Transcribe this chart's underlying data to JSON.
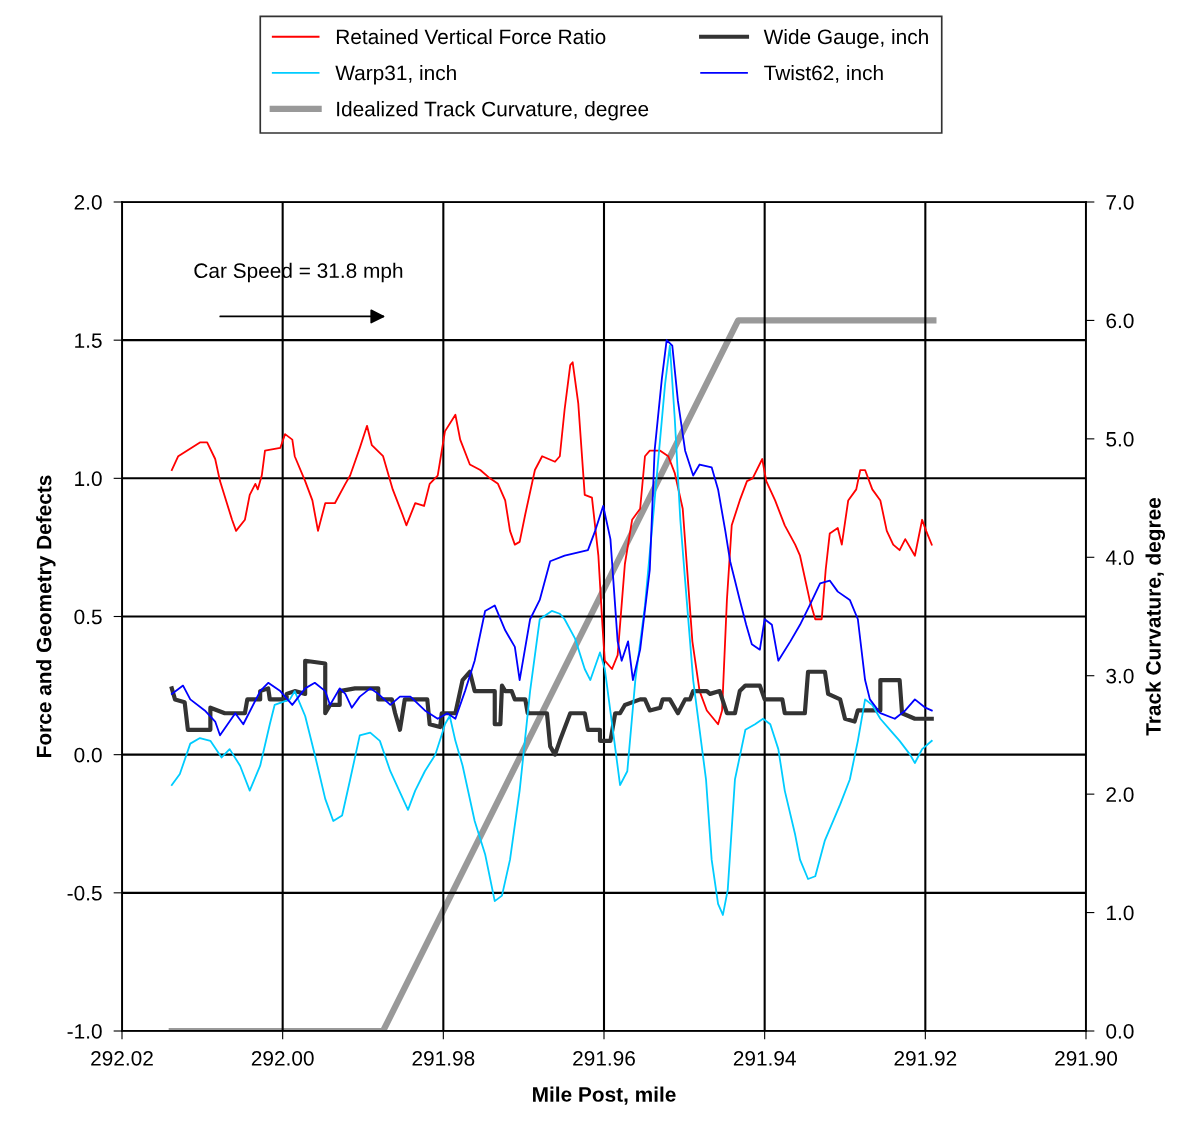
{
  "chart_data": {
    "type": "line",
    "xlabel": "Mile Post, mile",
    "ylabel": "Force and Geometry Defects",
    "y2label": "Track Curvature, degree",
    "xlim": [
      292.02,
      291.9
    ],
    "xticks": [
      {
        "value": 292.02,
        "label": "292.02"
      },
      {
        "value": 292.0,
        "label": "292.00"
      },
      {
        "value": 291.98,
        "label": "291.98"
      },
      {
        "value": 291.96,
        "label": "291.96"
      },
      {
        "value": 291.94,
        "label": "291.94"
      },
      {
        "value": 291.92,
        "label": "291.92"
      },
      {
        "value": 291.9,
        "label": "291.90"
      }
    ],
    "ylim": [
      -1.0,
      2.0
    ],
    "yticks": [
      {
        "value": -1.0,
        "label": "-1.0"
      },
      {
        "value": -0.5,
        "label": "-0.5"
      },
      {
        "value": 0.0,
        "label": "0.0"
      },
      {
        "value": 0.5,
        "label": "0.5"
      },
      {
        "value": 1.0,
        "label": "1.0"
      },
      {
        "value": 1.5,
        "label": "1.5"
      },
      {
        "value": 2.0,
        "label": "2.0"
      }
    ],
    "y2lim": [
      0.0,
      7.0
    ],
    "y2ticks": [
      {
        "value": 0.0,
        "label": "0.0"
      },
      {
        "value": 1.0,
        "label": "1.0"
      },
      {
        "value": 2.0,
        "label": "2.0"
      },
      {
        "value": 3.0,
        "label": "3.0"
      },
      {
        "value": 4.0,
        "label": "4.0"
      },
      {
        "value": 5.0,
        "label": "5.0"
      },
      {
        "value": 6.0,
        "label": "6.0"
      },
      {
        "value": 7.0,
        "label": "7.0"
      }
    ],
    "grid": true,
    "legend": "top",
    "marker": "none",
    "line_style": "solid",
    "annotations": [
      "Car Speed = 31.8 mph"
    ],
    "series": [
      {
        "name": "Retained Vertical Force Ratio",
        "color": "#ff0000",
        "x": [
          292.0138,
          292.013,
          292.0103,
          292.0094,
          292.0084,
          292.0078,
          292.0063,
          292.0058,
          292.0047,
          292.0041,
          292.0034,
          292.0031,
          292.0026,
          292.0022,
          292.0003,
          291.9997,
          291.9988,
          291.9985,
          291.9972,
          291.9963,
          291.9956,
          291.9947,
          291.9935,
          291.9922,
          291.9916,
          291.9904,
          291.9895,
          291.9889,
          291.9875,
          291.9863,
          291.9851,
          291.9846,
          291.9835,
          291.9824,
          291.9817,
          291.9807,
          291.9798,
          291.9785,
          291.9779,
          291.9767,
          291.9754,
          291.9742,
          291.9732,
          291.9723,
          291.9717,
          291.9711,
          291.9705,
          291.9698,
          291.9686,
          291.9677,
          291.9661,
          291.9655,
          291.9649,
          291.9642,
          291.9639,
          291.9632,
          291.9624,
          291.9615,
          291.9607,
          291.9602,
          291.9599,
          291.959,
          291.9583,
          291.9574,
          291.9565,
          291.9555,
          291.9549,
          291.9543,
          291.953,
          291.952,
          291.9512,
          291.9502,
          291.949,
          291.9481,
          291.9472,
          291.9458,
          291.9453,
          291.9447,
          291.9441,
          291.9431,
          291.9422,
          291.9415,
          291.9403,
          291.9398,
          291.9387,
          291.9375,
          291.9362,
          291.9356,
          291.9344,
          291.9337,
          291.9329,
          291.9324,
          291.9319,
          291.9309,
          291.9304,
          291.9296,
          291.9286,
          291.9281,
          291.9275,
          291.9266,
          291.9256,
          291.9248,
          291.924,
          291.9232,
          291.9225,
          291.9213,
          291.9204,
          291.9199,
          291.9192
        ],
        "values": [
          1.03,
          1.08,
          1.13,
          1.13,
          1.07,
          0.99,
          0.85,
          0.81,
          0.85,
          0.94,
          0.98,
          0.96,
          1.01,
          1.1,
          1.11,
          1.16,
          1.14,
          1.08,
          0.99,
          0.92,
          0.81,
          0.91,
          0.91,
          0.98,
          1.01,
          1.11,
          1.19,
          1.12,
          1.08,
          0.96,
          0.87,
          0.83,
          0.91,
          0.9,
          0.98,
          1.01,
          1.17,
          1.23,
          1.14,
          1.05,
          1.03,
          1.0,
          0.98,
          0.92,
          0.81,
          0.76,
          0.77,
          0.87,
          1.03,
          1.08,
          1.06,
          1.08,
          1.25,
          1.41,
          1.42,
          1.27,
          0.94,
          0.93,
          0.72,
          0.47,
          0.34,
          0.31,
          0.36,
          0.69,
          0.85,
          0.89,
          1.08,
          1.1,
          1.1,
          1.08,
          1.02,
          0.89,
          0.41,
          0.23,
          0.16,
          0.11,
          0.16,
          0.56,
          0.83,
          0.92,
          0.99,
          1.0,
          1.07,
          0.99,
          0.92,
          0.83,
          0.76,
          0.72,
          0.56,
          0.49,
          0.49,
          0.67,
          0.8,
          0.82,
          0.76,
          0.92,
          0.96,
          1.03,
          1.03,
          0.96,
          0.92,
          0.81,
          0.76,
          0.74,
          0.78,
          0.72,
          0.85,
          0.81,
          0.76
        ]
      },
      {
        "name": "Wide Gauge, inch",
        "color": "#333333",
        "x": [
          292.0138,
          292.0134,
          292.0122,
          292.0118,
          292.009,
          292.009,
          292.0072,
          292.0047,
          292.0044,
          292.0028,
          292.0028,
          292.0018,
          292.0016,
          291.9995,
          291.9995,
          291.9985,
          291.9972,
          291.9972,
          291.9947,
          291.9947,
          291.9941,
          291.9929,
          291.9929,
          291.991,
          291.9881,
          291.9881,
          291.9864,
          291.986,
          291.9854,
          291.9848,
          291.982,
          291.9817,
          291.9804,
          291.9802,
          291.9785,
          291.9776,
          291.9767,
          291.9761,
          291.9736,
          291.9736,
          291.9729,
          291.9727,
          291.9723,
          291.9715,
          291.9711,
          291.9698,
          291.9695,
          291.9671,
          291.9667,
          291.9661,
          291.9655,
          291.9642,
          291.9624,
          291.962,
          291.9605,
          291.9605,
          291.9592,
          291.9586,
          291.958,
          291.9574,
          291.9555,
          291.9549,
          291.9543,
          291.953,
          291.9527,
          291.9518,
          291.9508,
          291.9499,
          291.9493,
          291.9489,
          291.9481,
          291.9472,
          291.9468,
          291.9456,
          291.9447,
          291.9437,
          291.9431,
          291.9424,
          291.9406,
          291.94,
          291.9378,
          291.9375,
          291.935,
          291.9346,
          291.9325,
          291.9321,
          291.9306,
          291.93,
          291.9288,
          291.9284,
          291.9256,
          291.9256,
          291.9232,
          291.9229,
          291.9213,
          291.9192
        ],
        "values": [
          0.24,
          0.2,
          0.19,
          0.09,
          0.09,
          0.17,
          0.15,
          0.15,
          0.2,
          0.2,
          0.23,
          0.24,
          0.2,
          0.2,
          0.22,
          0.23,
          0.22,
          0.34,
          0.33,
          0.15,
          0.18,
          0.18,
          0.23,
          0.24,
          0.24,
          0.2,
          0.2,
          0.15,
          0.09,
          0.2,
          0.2,
          0.11,
          0.1,
          0.15,
          0.15,
          0.27,
          0.3,
          0.23,
          0.23,
          0.11,
          0.11,
          0.25,
          0.23,
          0.23,
          0.2,
          0.2,
          0.15,
          0.15,
          0.03,
          0.0,
          0.05,
          0.15,
          0.15,
          0.09,
          0.09,
          0.05,
          0.05,
          0.15,
          0.15,
          0.18,
          0.2,
          0.2,
          0.16,
          0.17,
          0.2,
          0.2,
          0.15,
          0.2,
          0.2,
          0.23,
          0.23,
          0.23,
          0.22,
          0.23,
          0.15,
          0.15,
          0.23,
          0.25,
          0.25,
          0.2,
          0.2,
          0.15,
          0.15,
          0.3,
          0.3,
          0.22,
          0.2,
          0.13,
          0.12,
          0.16,
          0.16,
          0.27,
          0.27,
          0.15,
          0.13,
          0.13
        ]
      },
      {
        "name": "Warp31, inch",
        "color": "#00ccff",
        "x": [
          292.0138,
          292.0128,
          292.0115,
          292.0103,
          292.009,
          292.0076,
          292.0066,
          292.0053,
          292.0041,
          292.0028,
          292.0016,
          292.001,
          291.9991,
          291.9985,
          291.9972,
          291.996,
          291.9947,
          291.9937,
          291.9926,
          291.9916,
          291.9904,
          291.9891,
          291.9879,
          291.9866,
          291.9844,
          291.9835,
          291.9823,
          291.981,
          291.98,
          291.9798,
          291.9792,
          291.9785,
          291.9776,
          291.9761,
          291.9748,
          291.9736,
          291.9727,
          291.9717,
          291.9705,
          291.9692,
          291.968,
          291.9665,
          291.9655,
          291.9649,
          291.9636,
          291.9624,
          291.9617,
          291.9605,
          291.9599,
          291.9589,
          291.958,
          291.9571,
          291.9561,
          291.9549,
          291.9537,
          291.9524,
          291.9518,
          291.9512,
          291.9505,
          291.9499,
          291.9489,
          291.9481,
          291.9473,
          291.9466,
          291.9458,
          291.9452,
          291.9446,
          291.9437,
          291.9424,
          291.9412,
          291.9402,
          291.9393,
          291.9383,
          291.9375,
          291.9362,
          291.9356,
          291.9346,
          291.9337,
          291.9325,
          291.9306,
          291.9294,
          291.9284,
          291.9275,
          291.9266,
          291.9256,
          291.9244,
          291.9232,
          291.9219,
          291.9213,
          291.9204,
          291.9192
        ],
        "values": [
          -0.11,
          -0.07,
          0.04,
          0.06,
          0.05,
          -0.01,
          0.02,
          -0.04,
          -0.13,
          -0.04,
          0.11,
          0.18,
          0.2,
          0.23,
          0.14,
          0.0,
          -0.16,
          -0.24,
          -0.22,
          -0.09,
          0.07,
          0.08,
          0.05,
          -0.06,
          -0.2,
          -0.13,
          -0.06,
          0.0,
          0.09,
          0.11,
          0.14,
          0.05,
          -0.04,
          -0.24,
          -0.36,
          -0.53,
          -0.51,
          -0.38,
          -0.13,
          0.23,
          0.49,
          0.52,
          0.51,
          0.49,
          0.42,
          0.31,
          0.27,
          0.37,
          0.31,
          0.09,
          -0.11,
          -0.06,
          0.27,
          0.54,
          0.92,
          1.34,
          1.48,
          1.22,
          0.85,
          0.63,
          0.27,
          0.09,
          -0.09,
          -0.38,
          -0.54,
          -0.58,
          -0.49,
          -0.09,
          0.09,
          0.11,
          0.13,
          0.11,
          0.02,
          -0.13,
          -0.29,
          -0.38,
          -0.45,
          -0.44,
          -0.31,
          -0.18,
          -0.09,
          0.05,
          0.2,
          0.18,
          0.13,
          0.09,
          0.05,
          0.0,
          -0.03,
          0.02,
          0.05
        ]
      },
      {
        "name": "Twist62, inch",
        "color": "#0000ff",
        "x": [
          292.0138,
          292.0124,
          292.0115,
          292.0097,
          292.0084,
          292.0078,
          292.0059,
          292.0049,
          292.0028,
          292.0018,
          292.0003,
          291.9988,
          291.9972,
          291.996,
          291.9947,
          291.9941,
          291.9929,
          291.9922,
          291.9914,
          291.9904,
          291.9891,
          291.9881,
          291.9866,
          291.9854,
          291.9841,
          291.9823,
          291.9807,
          291.9795,
          291.9785,
          291.9773,
          291.9761,
          291.9748,
          291.9736,
          291.9723,
          291.9711,
          291.9705,
          291.9692,
          291.968,
          291.9667,
          291.9649,
          291.962,
          291.9611,
          291.9601,
          291.9592,
          291.9583,
          291.9578,
          291.957,
          291.9564,
          291.9555,
          291.9543,
          291.9537,
          291.9528,
          291.9522,
          291.9515,
          291.9508,
          291.9499,
          291.9489,
          291.9481,
          291.9466,
          291.9458,
          291.9449,
          291.9443,
          291.9437,
          291.9431,
          291.9423,
          291.9416,
          291.9406,
          291.94,
          291.9391,
          291.9383,
          291.9368,
          291.9356,
          291.9344,
          291.9331,
          291.9319,
          291.9309,
          291.9294,
          291.9284,
          291.9275,
          291.9269,
          291.9256,
          291.9238,
          291.9225,
          291.9213,
          291.92,
          291.9192
        ],
        "values": [
          0.22,
          0.25,
          0.2,
          0.16,
          0.12,
          0.07,
          0.15,
          0.11,
          0.23,
          0.26,
          0.23,
          0.18,
          0.24,
          0.26,
          0.23,
          0.18,
          0.24,
          0.22,
          0.17,
          0.21,
          0.24,
          0.22,
          0.18,
          0.21,
          0.21,
          0.16,
          0.13,
          0.15,
          0.13,
          0.23,
          0.34,
          0.52,
          0.54,
          0.45,
          0.39,
          0.27,
          0.49,
          0.56,
          0.7,
          0.72,
          0.74,
          0.81,
          0.9,
          0.78,
          0.41,
          0.34,
          0.41,
          0.27,
          0.38,
          0.67,
          1.1,
          1.36,
          1.5,
          1.48,
          1.28,
          1.1,
          1.01,
          1.05,
          1.04,
          0.96,
          0.81,
          0.7,
          0.63,
          0.56,
          0.47,
          0.4,
          0.38,
          0.49,
          0.47,
          0.34,
          0.41,
          0.47,
          0.54,
          0.62,
          0.63,
          0.59,
          0.56,
          0.49,
          0.27,
          0.2,
          0.15,
          0.13,
          0.16,
          0.2,
          0.17,
          0.16
        ]
      },
      {
        "name": "Idealized Track Curvature, degree",
        "color": "#999999",
        "axis": "y2",
        "x": [
          292.0138,
          291.9875,
          291.9433,
          291.919
        ],
        "values": [
          0.0,
          0.0,
          6.0,
          6.0
        ]
      }
    ]
  }
}
